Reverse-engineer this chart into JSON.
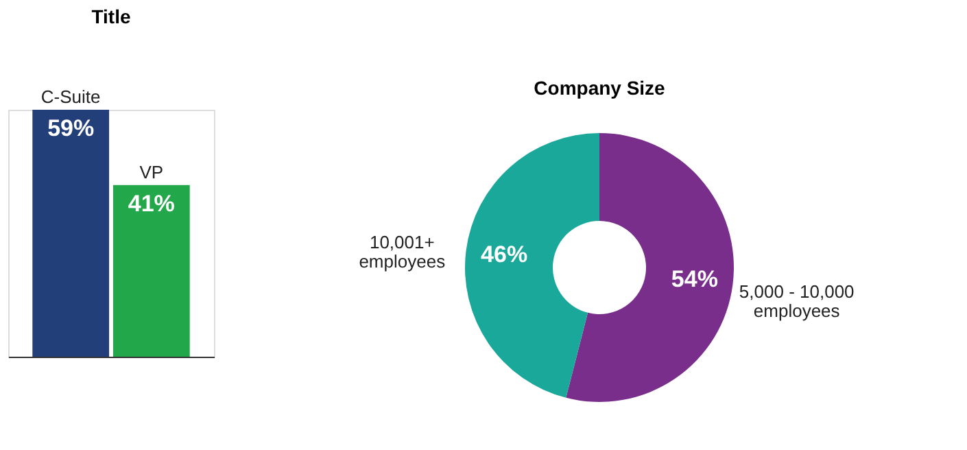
{
  "chart_data": [
    {
      "type": "bar",
      "title": "Title",
      "categories": [
        "C-Suite",
        "VP"
      ],
      "values": [
        59,
        41
      ],
      "colors": [
        "#233f7a",
        "#22a84a"
      ],
      "data_labels": true,
      "value_labels": [
        "59%",
        "41%"
      ]
    },
    {
      "type": "donut",
      "title": "Company Size",
      "categories": [
        "5,000 - 10,000 employees",
        "10,001+ employees"
      ],
      "values": [
        54,
        46
      ],
      "colors": [
        "#7a2e8c",
        "#1aa89a"
      ],
      "data_labels": true,
      "value_labels": [
        "54%",
        "46%"
      ]
    }
  ]
}
